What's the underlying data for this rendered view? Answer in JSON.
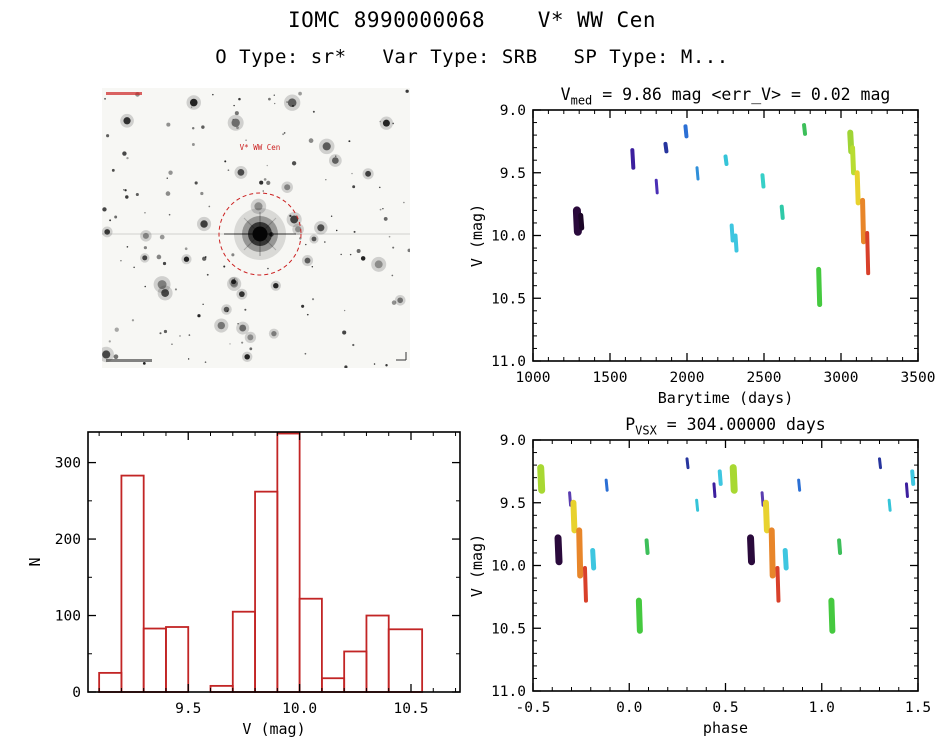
{
  "header": {
    "title": "IOMC 8990000068    V* WW Cen",
    "subtitle": "O Type: sr*   Var Type: SRB   SP Type: M..."
  },
  "star_image": {
    "target_label": "V* WW Cen",
    "circle_color": "#cc2222"
  },
  "chart_data": [
    {
      "id": "lightcurve",
      "type": "scatter",
      "title": {
        "pre": "V",
        "sub": "med",
        "post": " = 9.86 mag <err_V> = 0.02 mag"
      },
      "xlabel": "Barytime (days)",
      "ylabel": "V (mag)",
      "xlim": [
        1000,
        3500
      ],
      "ylim": [
        9.0,
        11.0
      ],
      "y_inverted": true,
      "xticks": [
        1000,
        1500,
        2000,
        2500,
        3000,
        3500
      ],
      "xtick_labels": [
        "1000",
        "1500",
        "2000",
        "2500",
        "3000",
        "3500"
      ],
      "yticks": [
        9.0,
        9.5,
        10.0,
        10.5,
        11.0
      ],
      "ytick_labels": [
        "9.0",
        "9.5",
        "10.0",
        "10.5",
        "11.0"
      ],
      "x_minor": 100,
      "y_minor": 0.1,
      "clusters": [
        {
          "x": 1285,
          "y1": 9.8,
          "y2": 9.97,
          "c": "#2a0a3c",
          "w": 8
        },
        {
          "x": 1310,
          "y1": 9.84,
          "y2": 9.94,
          "c": "#1c0628",
          "w": 5
        },
        {
          "x": 1645,
          "y1": 9.32,
          "y2": 9.46,
          "c": "#3c1f9e",
          "w": 4
        },
        {
          "x": 1800,
          "y1": 9.56,
          "y2": 9.66,
          "c": "#4a2fb5",
          "w": 3
        },
        {
          "x": 1860,
          "y1": 9.27,
          "y2": 9.33,
          "c": "#27359e",
          "w": 4
        },
        {
          "x": 1990,
          "y1": 9.13,
          "y2": 9.21,
          "c": "#2b6fd4",
          "w": 4
        },
        {
          "x": 2065,
          "y1": 9.46,
          "y2": 9.55,
          "c": "#2f8fd9",
          "w": 3
        },
        {
          "x": 2250,
          "y1": 9.37,
          "y2": 9.43,
          "c": "#35c4d8",
          "w": 4
        },
        {
          "x": 2290,
          "y1": 9.92,
          "y2": 10.04,
          "c": "#3ec6e0",
          "w": 4
        },
        {
          "x": 2315,
          "y1": 10.0,
          "y2": 10.12,
          "c": "#3ec6e0",
          "w": 4
        },
        {
          "x": 2490,
          "y1": 9.52,
          "y2": 9.61,
          "c": "#37d0c8",
          "w": 4
        },
        {
          "x": 2615,
          "y1": 9.77,
          "y2": 9.86,
          "c": "#2fc9a8",
          "w": 4
        },
        {
          "x": 2760,
          "y1": 9.12,
          "y2": 9.19,
          "c": "#3dbf5a",
          "w": 4
        },
        {
          "x": 2855,
          "y1": 10.27,
          "y2": 10.55,
          "c": "#45c93f",
          "w": 5
        },
        {
          "x": 3060,
          "y1": 9.18,
          "y2": 9.33,
          "c": "#9fd435",
          "w": 6
        },
        {
          "x": 3075,
          "y1": 9.3,
          "y2": 9.5,
          "c": "#b8dd32",
          "w": 5
        },
        {
          "x": 3105,
          "y1": 9.5,
          "y2": 9.74,
          "c": "#e8d22e",
          "w": 5
        },
        {
          "x": 3140,
          "y1": 9.72,
          "y2": 10.05,
          "c": "#e8862a",
          "w": 5
        },
        {
          "x": 3170,
          "y1": 9.98,
          "y2": 10.3,
          "c": "#d8402a",
          "w": 4
        }
      ]
    },
    {
      "id": "histogram",
      "type": "bar",
      "xlabel": "V (mag)",
      "ylabel": "N",
      "xlim": [
        9.05,
        10.72
      ],
      "ylim": [
        0,
        340
      ],
      "y_inverted": false,
      "xticks": [
        9.5,
        10.0,
        10.5
      ],
      "xtick_labels": [
        "9.5",
        "10.0",
        "10.5"
      ],
      "yticks": [
        0,
        100,
        200,
        300
      ],
      "ytick_labels": [
        "0",
        "100",
        "200",
        "300"
      ],
      "x_minor": 0.1,
      "y_minor": 50,
      "bar_color": "#c22525",
      "bins": [
        {
          "x0": 9.1,
          "x1": 9.2,
          "n": 25
        },
        {
          "x0": 9.2,
          "x1": 9.3,
          "n": 283
        },
        {
          "x0": 9.3,
          "x1": 9.4,
          "n": 83
        },
        {
          "x0": 9.4,
          "x1": 9.5,
          "n": 85
        },
        {
          "x0": 9.5,
          "x1": 9.6,
          "n": 0
        },
        {
          "x0": 9.6,
          "x1": 9.7,
          "n": 8
        },
        {
          "x0": 9.7,
          "x1": 9.8,
          "n": 105
        },
        {
          "x0": 9.8,
          "x1": 9.9,
          "n": 262
        },
        {
          "x0": 9.9,
          "x1": 10.0,
          "n": 338
        },
        {
          "x0": 10.0,
          "x1": 10.1,
          "n": 122
        },
        {
          "x0": 10.1,
          "x1": 10.2,
          "n": 18
        },
        {
          "x0": 10.2,
          "x1": 10.3,
          "n": 53
        },
        {
          "x0": 10.3,
          "x1": 10.4,
          "n": 100
        },
        {
          "x0": 10.4,
          "x1": 10.55,
          "n": 82
        }
      ]
    },
    {
      "id": "phase",
      "type": "scatter",
      "title": {
        "pre": "P",
        "sub": "VSX",
        "post": " = 304.00000 days"
      },
      "xlabel": "phase",
      "ylabel": "V (mag)",
      "xlim": [
        -0.5,
        1.5
      ],
      "ylim": [
        9.0,
        11.0
      ],
      "y_inverted": true,
      "xticks": [
        -0.5,
        0.0,
        0.5,
        1.0,
        1.5
      ],
      "xtick_labels": [
        "-0.5",
        "0.0",
        "0.5",
        "1.0",
        "1.5"
      ],
      "yticks": [
        9.0,
        9.5,
        10.0,
        10.5,
        11.0
      ],
      "ytick_labels": [
        "9.0",
        "9.5",
        "10.0",
        "10.5",
        "11.0"
      ],
      "x_minor": 0.1,
      "y_minor": 0.1,
      "clusters": [
        {
          "x": -0.46,
          "y1": 9.22,
          "y2": 9.4,
          "c": "#a8d832",
          "w": 7
        },
        {
          "x": -0.37,
          "y1": 9.78,
          "y2": 9.97,
          "c": "#2a0a3c",
          "w": 7
        },
        {
          "x": -0.31,
          "y1": 9.42,
          "y2": 9.52,
          "c": "#5a3db0",
          "w": 3
        },
        {
          "x": -0.29,
          "y1": 9.5,
          "y2": 9.72,
          "c": "#e8d22e",
          "w": 6
        },
        {
          "x": -0.26,
          "y1": 9.72,
          "y2": 10.08,
          "c": "#e8862a",
          "w": 6
        },
        {
          "x": -0.23,
          "y1": 10.02,
          "y2": 10.28,
          "c": "#d8402a",
          "w": 4
        },
        {
          "x": -0.19,
          "y1": 9.88,
          "y2": 10.02,
          "c": "#3ec6e0",
          "w": 5
        },
        {
          "x": -0.12,
          "y1": 9.32,
          "y2": 9.4,
          "c": "#2b6fd4",
          "w": 3
        },
        {
          "x": 0.05,
          "y1": 10.28,
          "y2": 10.52,
          "c": "#45c93f",
          "w": 6
        },
        {
          "x": 0.09,
          "y1": 9.8,
          "y2": 9.9,
          "c": "#3dbf5a",
          "w": 4
        },
        {
          "x": 0.3,
          "y1": 9.15,
          "y2": 9.22,
          "c": "#27359e",
          "w": 3
        },
        {
          "x": 0.35,
          "y1": 9.48,
          "y2": 9.56,
          "c": "#35c4d8",
          "w": 3
        },
        {
          "x": 0.44,
          "y1": 9.35,
          "y2": 9.45,
          "c": "#3c1f9e",
          "w": 3
        },
        {
          "x": 0.47,
          "y1": 9.25,
          "y2": 9.35,
          "c": "#3ec6e0",
          "w": 4
        },
        {
          "x": 0.54,
          "y1": 9.22,
          "y2": 9.4,
          "c": "#a8d832",
          "w": 7
        },
        {
          "x": 0.63,
          "y1": 9.78,
          "y2": 9.97,
          "c": "#2a0a3c",
          "w": 7
        },
        {
          "x": 0.69,
          "y1": 9.42,
          "y2": 9.52,
          "c": "#5a3db0",
          "w": 3
        },
        {
          "x": 0.71,
          "y1": 9.5,
          "y2": 9.72,
          "c": "#e8d22e",
          "w": 6
        },
        {
          "x": 0.74,
          "y1": 9.72,
          "y2": 10.08,
          "c": "#e8862a",
          "w": 6
        },
        {
          "x": 0.77,
          "y1": 10.02,
          "y2": 10.28,
          "c": "#d8402a",
          "w": 4
        },
        {
          "x": 0.81,
          "y1": 9.88,
          "y2": 10.02,
          "c": "#3ec6e0",
          "w": 5
        },
        {
          "x": 0.88,
          "y1": 9.32,
          "y2": 9.4,
          "c": "#2b6fd4",
          "w": 3
        },
        {
          "x": 1.05,
          "y1": 10.28,
          "y2": 10.52,
          "c": "#45c93f",
          "w": 6
        },
        {
          "x": 1.09,
          "y1": 9.8,
          "y2": 9.9,
          "c": "#3dbf5a",
          "w": 4
        },
        {
          "x": 1.3,
          "y1": 9.15,
          "y2": 9.22,
          "c": "#27359e",
          "w": 3
        },
        {
          "x": 1.35,
          "y1": 9.48,
          "y2": 9.56,
          "c": "#35c4d8",
          "w": 3
        },
        {
          "x": 1.44,
          "y1": 9.35,
          "y2": 9.45,
          "c": "#3c1f9e",
          "w": 3
        },
        {
          "x": 1.47,
          "y1": 9.25,
          "y2": 9.35,
          "c": "#3ec6e0",
          "w": 4
        }
      ]
    }
  ]
}
